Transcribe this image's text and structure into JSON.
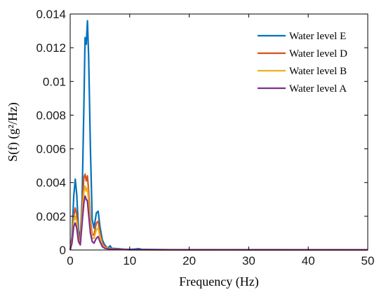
{
  "chart_data": {
    "type": "line",
    "xlabel": "Frequency (Hz)",
    "ylabel": "S(f) (g²/Hz)",
    "xlim": [
      0,
      50
    ],
    "ylim": [
      0,
      0.014
    ],
    "xticks": [
      0,
      10,
      20,
      30,
      40,
      50
    ],
    "yticks": [
      0,
      0.002,
      0.004,
      0.006,
      0.008,
      0.01,
      0.012,
      0.014
    ],
    "ytick_labels": [
      "0",
      "0.002",
      "0.004",
      "0.006",
      "0.008",
      "0.01",
      "0.012",
      "0.014"
    ],
    "grid": false,
    "legend_position": "top-right",
    "series": [
      {
        "name": "Water level E",
        "color": "#0072BD",
        "points": [
          [
            0,
            0
          ],
          [
            0.3,
            0.0008
          ],
          [
            0.6,
            0.0032
          ],
          [
            0.85,
            0.0042
          ],
          [
            1.1,
            0.0033
          ],
          [
            1.4,
            0.0012
          ],
          [
            1.7,
            0.0007
          ],
          [
            2.0,
            0.003
          ],
          [
            2.3,
            0.0085
          ],
          [
            2.5,
            0.0126
          ],
          [
            2.7,
            0.0122
          ],
          [
            2.9,
            0.0136
          ],
          [
            3.1,
            0.0115
          ],
          [
            3.4,
            0.006
          ],
          [
            3.7,
            0.0018
          ],
          [
            4.0,
            0.0013
          ],
          [
            4.4,
            0.0022
          ],
          [
            4.7,
            0.0023
          ],
          [
            5.0,
            0.0014
          ],
          [
            5.4,
            0.0006
          ],
          [
            5.8,
            0.0003
          ],
          [
            6.3,
            0.0001
          ],
          [
            6.7,
            0.00025
          ],
          [
            7.0,
            0.0001
          ],
          [
            8,
            8e-05
          ],
          [
            9,
            5e-05
          ],
          [
            10,
            3e-05
          ],
          [
            11,
            6e-05
          ],
          [
            11.5,
            8e-05
          ],
          [
            12,
            4e-05
          ],
          [
            13,
            3e-05
          ],
          [
            15,
            2e-05
          ],
          [
            20,
            1e-05
          ],
          [
            30,
            1e-05
          ],
          [
            40,
            1e-05
          ],
          [
            50,
            1e-05
          ]
        ]
      },
      {
        "name": "Water level D",
        "color": "#D95319",
        "points": [
          [
            0,
            0
          ],
          [
            0.3,
            0.0006
          ],
          [
            0.6,
            0.002
          ],
          [
            0.85,
            0.0025
          ],
          [
            1.1,
            0.0021
          ],
          [
            1.4,
            0.0008
          ],
          [
            1.7,
            0.0005
          ],
          [
            2.0,
            0.0025
          ],
          [
            2.3,
            0.0043
          ],
          [
            2.5,
            0.0045
          ],
          [
            2.7,
            0.0041
          ],
          [
            2.9,
            0.0044
          ],
          [
            3.1,
            0.0035
          ],
          [
            3.4,
            0.0018
          ],
          [
            3.7,
            0.0009
          ],
          [
            4.0,
            0.0009
          ],
          [
            4.4,
            0.0016
          ],
          [
            4.7,
            0.0017
          ],
          [
            5.0,
            0.001
          ],
          [
            5.4,
            0.0004
          ],
          [
            5.8,
            0.0002
          ],
          [
            6.5,
            0.0001
          ],
          [
            8,
            5e-05
          ],
          [
            10,
            2e-05
          ],
          [
            15,
            1e-05
          ],
          [
            50,
            1e-05
          ]
        ]
      },
      {
        "name": "Water level B",
        "color": "#EDB120",
        "points": [
          [
            0,
            0
          ],
          [
            0.3,
            0.0005
          ],
          [
            0.6,
            0.0017
          ],
          [
            0.85,
            0.002
          ],
          [
            1.1,
            0.0017
          ],
          [
            1.4,
            0.0006
          ],
          [
            1.7,
            0.0004
          ],
          [
            2.0,
            0.0022
          ],
          [
            2.3,
            0.0034
          ],
          [
            2.5,
            0.0038
          ],
          [
            2.7,
            0.0035
          ],
          [
            2.9,
            0.0037
          ],
          [
            3.1,
            0.0028
          ],
          [
            3.4,
            0.0014
          ],
          [
            3.7,
            0.0007
          ],
          [
            4.0,
            0.0007
          ],
          [
            4.4,
            0.0012
          ],
          [
            4.7,
            0.0013
          ],
          [
            5.0,
            0.0008
          ],
          [
            5.4,
            0.0003
          ],
          [
            5.8,
            0.00015
          ],
          [
            6.5,
            8e-05
          ],
          [
            8,
            4e-05
          ],
          [
            10,
            2e-05
          ],
          [
            50,
            1e-05
          ]
        ]
      },
      {
        "name": "Water level A",
        "color": "#7E2F8E",
        "points": [
          [
            0,
            0
          ],
          [
            0.3,
            0.0004
          ],
          [
            0.6,
            0.0014
          ],
          [
            0.85,
            0.0016
          ],
          [
            1.1,
            0.0013
          ],
          [
            1.4,
            0.0005
          ],
          [
            1.7,
            0.0003
          ],
          [
            2.0,
            0.0016
          ],
          [
            2.3,
            0.0028
          ],
          [
            2.5,
            0.0032
          ],
          [
            2.7,
            0.003
          ],
          [
            2.9,
            0.0029
          ],
          [
            3.1,
            0.0021
          ],
          [
            3.4,
            0.001
          ],
          [
            3.7,
            0.0005
          ],
          [
            4.0,
            0.0004
          ],
          [
            4.4,
            0.0007
          ],
          [
            4.7,
            0.0008
          ],
          [
            5.0,
            0.0005
          ],
          [
            5.4,
            0.0002
          ],
          [
            5.8,
            0.0001
          ],
          [
            6.5,
            6e-05
          ],
          [
            8,
            3e-05
          ],
          [
            10,
            2e-05
          ],
          [
            50,
            1e-05
          ]
        ]
      }
    ]
  }
}
